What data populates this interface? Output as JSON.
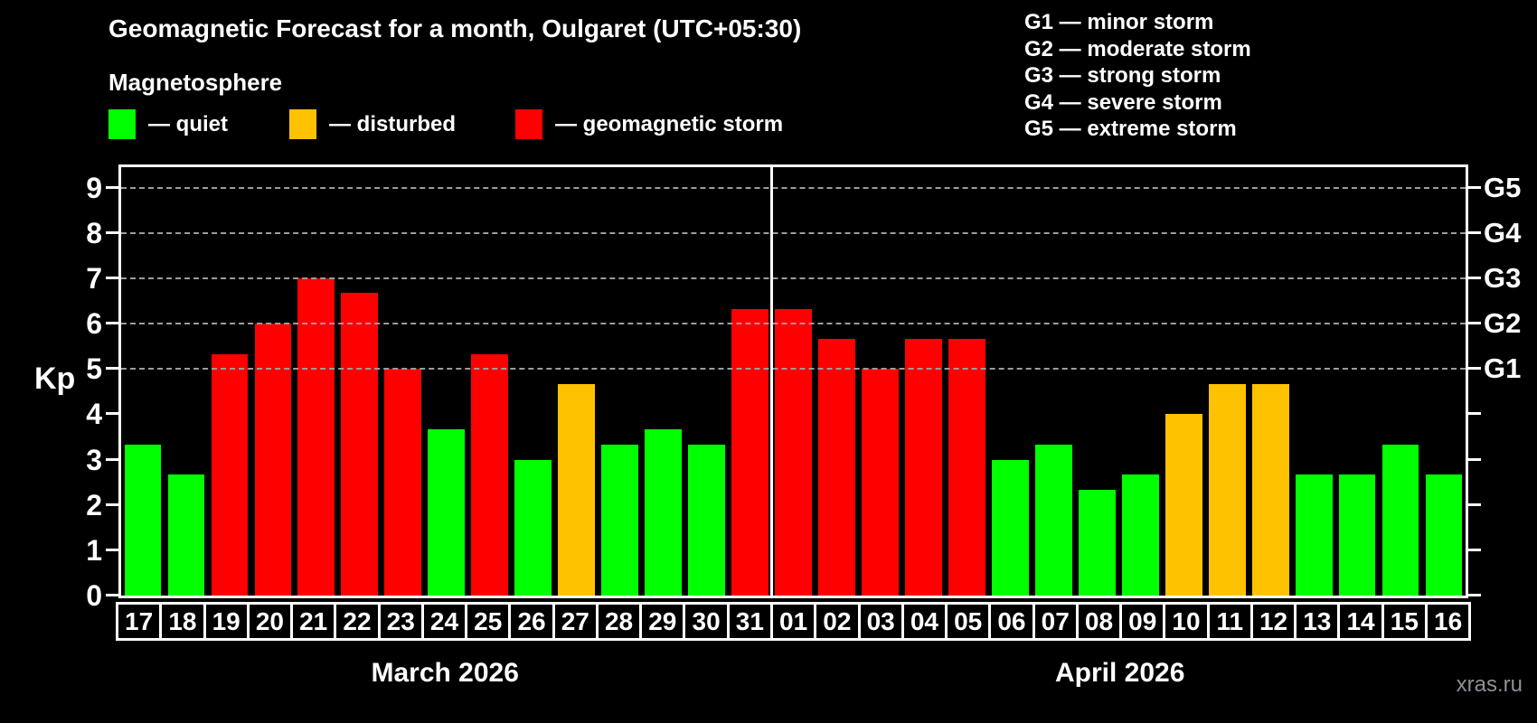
{
  "title": "Geomagnetic Forecast for a month, Oulgaret (UTC+05:30)",
  "subtitle": "Magnetosphere",
  "legend": [
    {
      "key": "quiet",
      "label": "— quiet",
      "color": "#00ff00"
    },
    {
      "key": "disturbed",
      "label": "— disturbed",
      "color": "#ffc200"
    },
    {
      "key": "storm",
      "label": "— geomagnetic storm",
      "color": "#ff0000"
    }
  ],
  "gscale_legend": [
    "G1 — minor storm",
    "G2 — moderate storm",
    "G3 — strong storm",
    "G4 — severe storm",
    "G5 — extreme storm"
  ],
  "watermark": "xras.ru",
  "chart_data": {
    "type": "bar",
    "ylabel": "Kp",
    "ylim": [
      0,
      9.45
    ],
    "yticks": [
      0,
      1,
      2,
      3,
      4,
      5,
      6,
      7,
      8,
      9
    ],
    "gridlines_at": [
      5,
      6,
      7,
      8,
      9
    ],
    "grid_style": "horizontal dashed gray, only at G-storm levels",
    "legend_position": "top-left",
    "right_axis_labels": [
      {
        "value": 5,
        "label": "G1"
      },
      {
        "value": 6,
        "label": "G2"
      },
      {
        "value": 7,
        "label": "G3"
      },
      {
        "value": 8,
        "label": "G4"
      },
      {
        "value": 9,
        "label": "G5"
      }
    ],
    "bar_colors_by_level": {
      "quiet": "#00ff00",
      "disturbed": "#ffc200",
      "storm": "#ff0000"
    },
    "months": [
      {
        "label": "March 2026",
        "days": [
          "17",
          "18",
          "19",
          "20",
          "21",
          "22",
          "23",
          "24",
          "25",
          "26",
          "27",
          "28",
          "29",
          "30",
          "31"
        ],
        "values": [
          3.33,
          2.67,
          5.33,
          6.0,
          7.0,
          6.67,
          5.0,
          3.67,
          5.33,
          3.0,
          4.67,
          3.33,
          3.67,
          3.33,
          6.33
        ],
        "levels": [
          "quiet",
          "quiet",
          "storm",
          "storm",
          "storm",
          "storm",
          "storm",
          "quiet",
          "storm",
          "quiet",
          "disturbed",
          "quiet",
          "quiet",
          "quiet",
          "storm"
        ]
      },
      {
        "label": "April 2026",
        "days": [
          "01",
          "02",
          "03",
          "04",
          "05",
          "06",
          "07",
          "08",
          "09",
          "10",
          "11",
          "12",
          "13",
          "14",
          "15",
          "16"
        ],
        "values": [
          6.33,
          5.67,
          5.0,
          5.67,
          5.67,
          3.0,
          3.33,
          2.33,
          2.67,
          4.0,
          4.67,
          4.67,
          2.67,
          2.67,
          3.33,
          2.67
        ],
        "levels": [
          "storm",
          "storm",
          "storm",
          "storm",
          "storm",
          "quiet",
          "quiet",
          "quiet",
          "quiet",
          "disturbed",
          "disturbed",
          "disturbed",
          "quiet",
          "quiet",
          "quiet",
          "quiet"
        ]
      }
    ]
  }
}
